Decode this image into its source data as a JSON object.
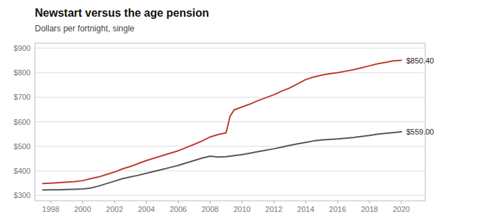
{
  "chart_data": {
    "type": "line",
    "title": "Newstart versus the age pension",
    "subtitle": "Dollars per fortnight, single",
    "xlim": [
      1997.0,
      2021.5
    ],
    "ylim": [
      278,
      920
    ],
    "yticks": [
      {
        "value": 300,
        "label": "$300"
      },
      {
        "value": 400,
        "label": "$400"
      },
      {
        "value": 500,
        "label": "$500"
      },
      {
        "value": 600,
        "label": "$600"
      },
      {
        "value": 700,
        "label": "$700"
      },
      {
        "value": 800,
        "label": "$800"
      },
      {
        "value": 900,
        "label": "$900"
      }
    ],
    "xticks": [
      1998,
      2000,
      2002,
      2004,
      2006,
      2008,
      2010,
      2012,
      2014,
      2016,
      2018,
      2020
    ],
    "grid": "y",
    "series": [
      {
        "color": "#c0392b",
        "x": [
          1997.5,
          1998.0,
          1998.5,
          1999.0,
          1999.5,
          2000.0,
          2000.5,
          2001.0,
          2001.5,
          2002.0,
          2002.5,
          2003.0,
          2003.5,
          2004.0,
          2004.5,
          2005.0,
          2005.5,
          2006.0,
          2006.5,
          2007.0,
          2007.5,
          2008.0,
          2008.5,
          2009.0,
          2009.25,
          2009.5,
          2010.0,
          2010.5,
          2011.0,
          2011.5,
          2012.0,
          2012.5,
          2013.0,
          2013.5,
          2014.0,
          2014.5,
          2015.0,
          2015.5,
          2016.0,
          2016.5,
          2017.0,
          2017.5,
          2018.0,
          2018.5,
          2019.0,
          2019.5,
          2020.0
        ],
        "values": [
          348,
          350,
          352,
          354,
          356,
          360,
          368,
          375,
          385,
          395,
          408,
          418,
          430,
          442,
          452,
          462,
          472,
          482,
          495,
          508,
          522,
          538,
          548,
          555,
          622,
          648,
          660,
          672,
          686,
          698,
          710,
          725,
          738,
          755,
          772,
          782,
          790,
          796,
          800,
          806,
          812,
          820,
          828,
          836,
          842,
          848,
          850.4
        ]
      },
      {
        "color": "#555555",
        "x": [
          1997.5,
          1998.0,
          1998.5,
          1999.0,
          1999.5,
          2000.0,
          2000.5,
          2001.0,
          2001.5,
          2002.0,
          2002.5,
          2003.0,
          2003.5,
          2004.0,
          2004.5,
          2005.0,
          2005.5,
          2006.0,
          2006.5,
          2007.0,
          2007.5,
          2008.0,
          2008.5,
          2009.0,
          2009.5,
          2010.0,
          2010.5,
          2011.0,
          2011.5,
          2012.0,
          2012.5,
          2013.0,
          2013.5,
          2014.0,
          2014.5,
          2015.0,
          2015.5,
          2016.0,
          2016.5,
          2017.0,
          2017.5,
          2018.0,
          2018.5,
          2019.0,
          2019.5,
          2020.0
        ],
        "values": [
          322,
          323,
          323,
          324,
          325,
          326,
          330,
          338,
          348,
          358,
          368,
          375,
          382,
          390,
          398,
          406,
          414,
          422,
          432,
          442,
          452,
          460,
          456,
          458,
          462,
          466,
          472,
          478,
          484,
          490,
          497,
          504,
          510,
          516,
          522,
          526,
          528,
          530,
          533,
          536,
          540,
          544,
          549,
          553,
          556,
          559.0
        ]
      }
    ],
    "annotations": [
      {
        "text": "$850.40",
        "x": 2020.0,
        "y": 850.4
      },
      {
        "text": "$559.00",
        "x": 2020.0,
        "y": 559.0
      }
    ]
  }
}
